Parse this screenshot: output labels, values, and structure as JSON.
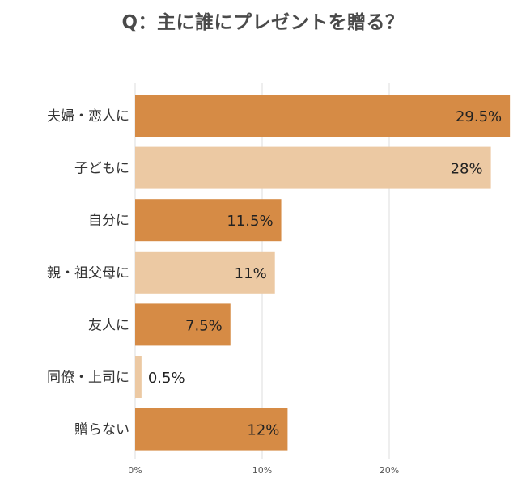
{
  "chart_data": {
    "type": "bar",
    "orientation": "horizontal",
    "title": "Q：主に誰にプレゼントを贈る？",
    "categories": [
      "夫婦・恋人に",
      "子どもに",
      "自分に",
      "親・祖父母に",
      "友人に",
      "同僚・上司に",
      "贈らない"
    ],
    "values": [
      29.5,
      28,
      11.5,
      11,
      7.5,
      0.5,
      12
    ],
    "value_labels": [
      "29.5%",
      "28%",
      "11.5%",
      "11%",
      "7.5%",
      "0.5%",
      "12%"
    ],
    "bar_colors": [
      "#d68b45",
      "#ecc9a3",
      "#d68b45",
      "#ecc9a3",
      "#d68b45",
      "#ecc9a3",
      "#d68b45"
    ],
    "x_ticks": [
      0,
      10,
      20
    ],
    "x_tick_labels": [
      "0%",
      "10%",
      "20%"
    ],
    "xlim": [
      0,
      30
    ],
    "grid": true,
    "xlabel": "",
    "ylabel": ""
  }
}
